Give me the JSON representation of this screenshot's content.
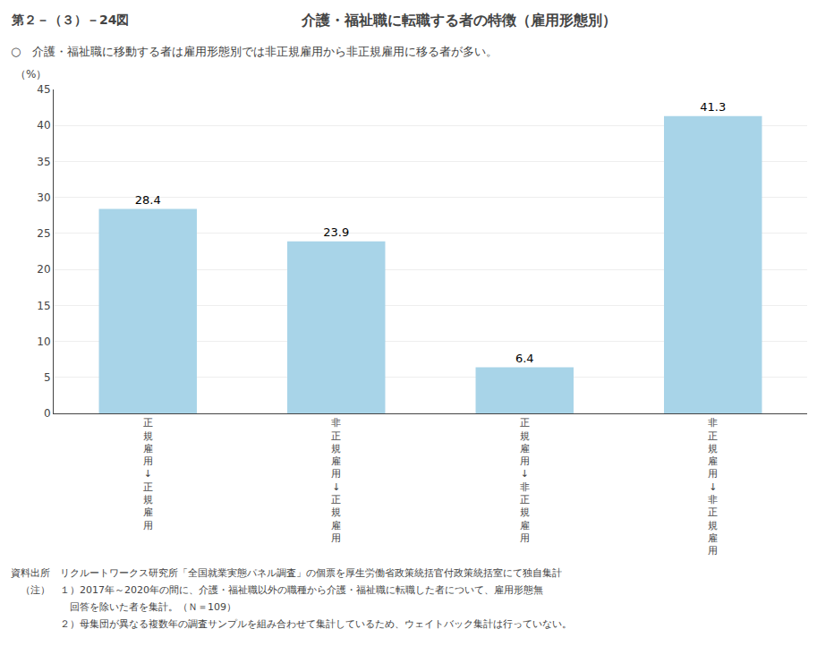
{
  "chart_data": {
    "type": "bar",
    "title": "介護・福祉職に転職する者の特徴（雇用形態別）",
    "subtitle": "○　介護・福祉職に移動する者は雇用形態別では非正規雇用から非正規雇用に移る者が多い。",
    "ylabel": "（%）",
    "categories": [
      "正規雇用↓正規雇用",
      "非正規雇用↓正規雇用",
      "正規雇用↓非正規雇用",
      "非正規雇用↓非正規雇用"
    ],
    "values": [
      28.4,
      23.9,
      6.4,
      41.3
    ],
    "color": "#A8D4E8",
    "ylim": [
      0,
      45
    ],
    "yticks": [
      0,
      5,
      10,
      15,
      20,
      25,
      30,
      35,
      40,
      45
    ],
    "grid": true,
    "data_labels": true,
    "annotations": [
      "第２－（３）－24図",
      "資料出所　リクルートワークス研究所「全国就業実態パネル調査」の個票を厚生労働省政策統括官付政策統括室にて独自集計",
      "　（注）　１）2017年～2020年の間に、介護・福祉職以外の職種から介護・福祉職に転職した者について、雇用形態無",
      "　　　　　　回答を除いた者を集計。（Ｎ＝109）",
      "　　　　　２）母集団が異なる複数年の調査サンプルを組み合わせて集計しているため、ウェイトバック集計は行っていない。"
    ]
  }
}
